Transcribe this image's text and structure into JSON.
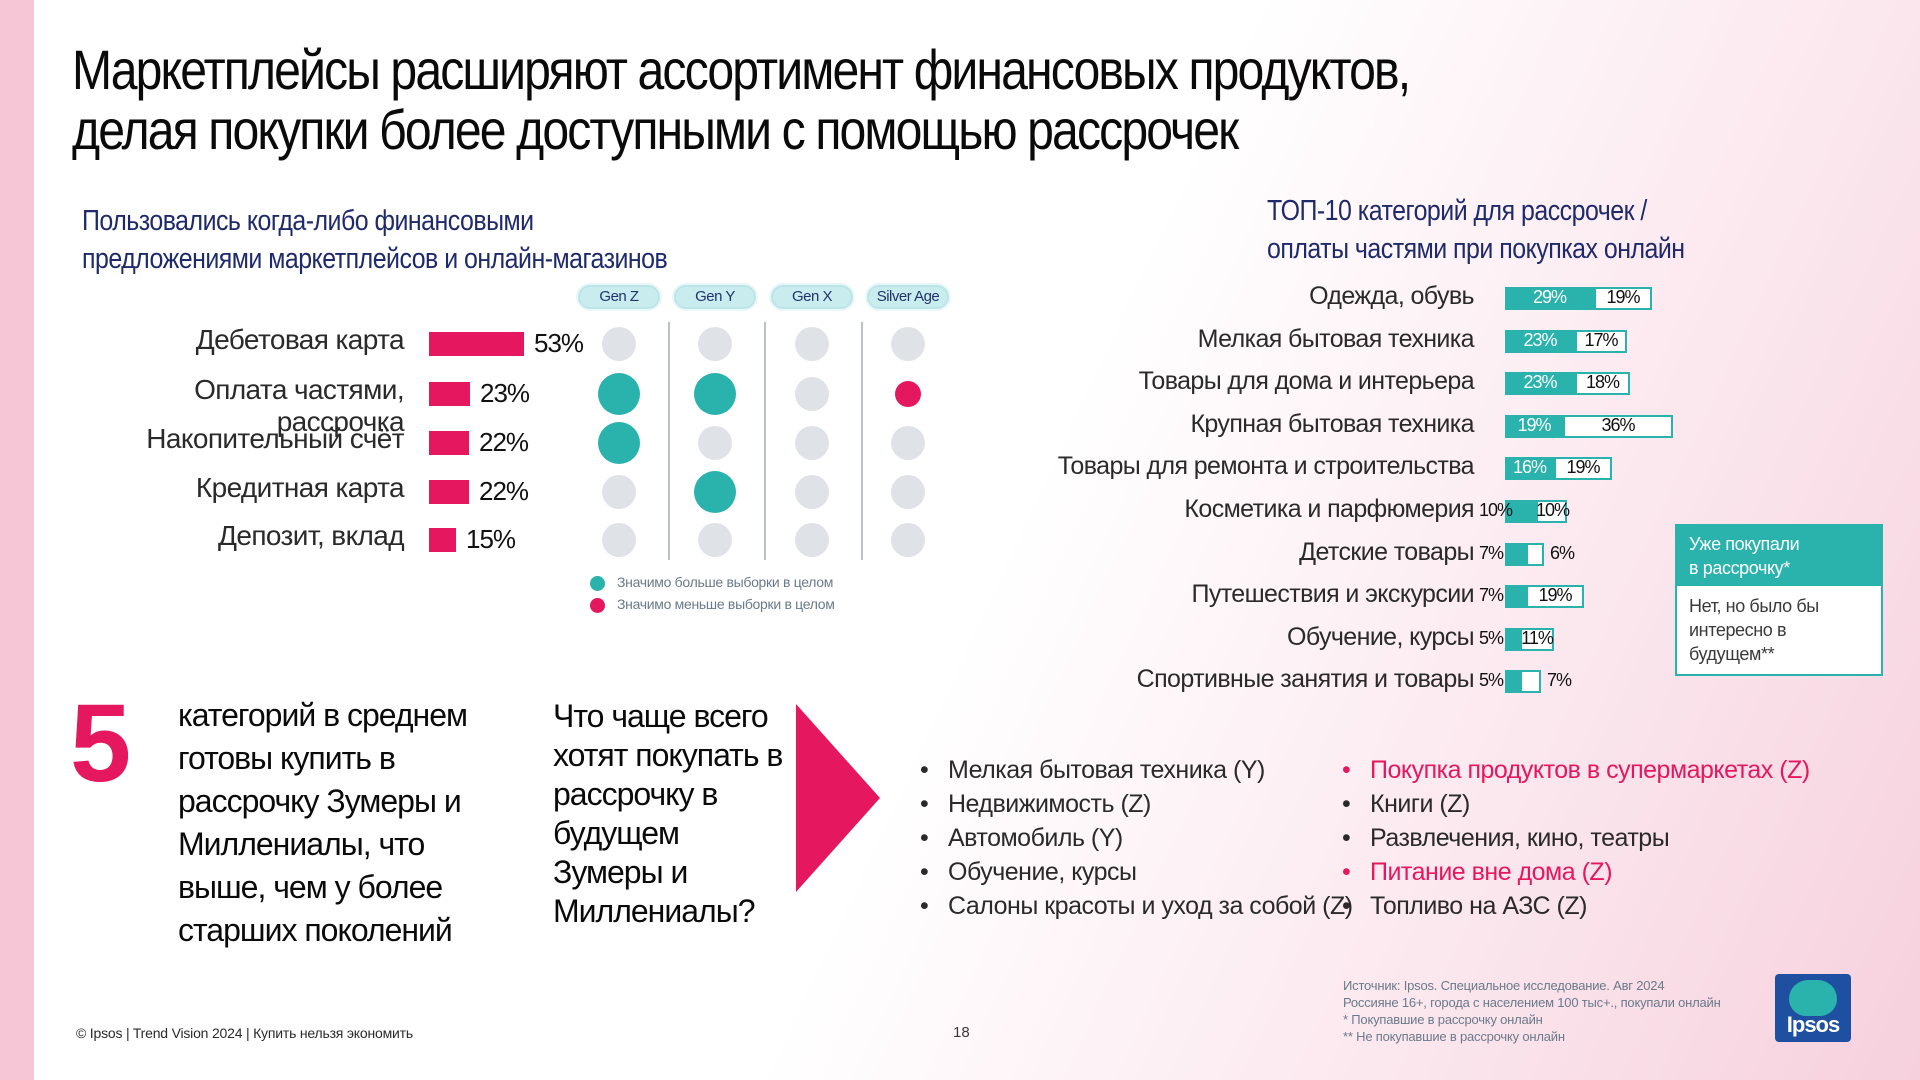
{
  "title_line1": "Маркетплейсы расширяют ассортимент финансовых продуктов,",
  "title_line2": "делая покупки более доступными с помощью рассрочек",
  "left_heading_line1": "Пользовались когда-либо финансовыми",
  "left_heading_line2": "предложениями маркетплейсов и онлайн-магазинов",
  "right_heading_line1": "ТОП-10 категорий для рассрочек /",
  "right_heading_line2": "оплаты частями при покупках онлайн",
  "colors": {
    "accent_pink": "#e5175f",
    "accent_teal": "#2ab3ad",
    "dot_grey": "#dfe2e6",
    "navy": "#1f2a6b"
  },
  "chart_data": [
    {
      "type": "bar",
      "orientation": "horizontal",
      "categories": [
        "Дебетовая карта",
        "Оплата частями, рассрочка",
        "Накопительный счёт",
        "Кредитная карта",
        "Депозит, вклад"
      ],
      "values": [
        53,
        23,
        22,
        22,
        15
      ],
      "value_labels": [
        "53%",
        "23%",
        "22%",
        "22%",
        "15%"
      ],
      "generations": [
        "Gen Z",
        "Gen Y",
        "Gen X",
        "Silver Age"
      ],
      "significance": [
        [
          "neutral",
          "neutral",
          "neutral",
          "neutral"
        ],
        [
          "higher",
          "higher",
          "neutral",
          "lower"
        ],
        [
          "higher",
          "neutral",
          "neutral",
          "neutral"
        ],
        [
          "neutral",
          "higher",
          "neutral",
          "neutral"
        ],
        [
          "neutral",
          "neutral",
          "neutral",
          "neutral"
        ]
      ],
      "legend": [
        {
          "label": "Значимо больше выборки в целом",
          "color": "#2ab3ad"
        },
        {
          "label": "Значимо меньше выборки в целом",
          "color": "#e5175f"
        }
      ]
    },
    {
      "type": "bar",
      "orientation": "horizontal",
      "stacked": true,
      "categories": [
        "Одежда, обувь",
        "Мелкая бытовая техника",
        "Товары для дома и интерьера",
        "Крупная бытовая техника",
        "Товары для ремонта и строительства",
        "Косметика и парфюмерия",
        "Детские товары",
        "Путешествия и экскурсии",
        "Обучение, курсы",
        "Спортивные занятия и товары"
      ],
      "series": [
        {
          "name": "Уже покупали в рассрочку*",
          "values": [
            29,
            23,
            23,
            19,
            16,
            10,
            7,
            7,
            5,
            5
          ],
          "labels": [
            "29%",
            "23%",
            "23%",
            "19%",
            "16%",
            "10%",
            "7%",
            "7%",
            "5%",
            "5%"
          ]
        },
        {
          "name": "Нет, но было бы интересно в будущем**",
          "values": [
            19,
            17,
            18,
            36,
            19,
            10,
            6,
            19,
            11,
            7
          ],
          "labels": [
            "19%",
            "17%",
            "18%",
            "36%",
            "19%",
            "10%",
            "6%",
            "19%",
            "11%",
            "7%"
          ]
        }
      ]
    }
  ],
  "legend_box": {
    "top_line1": "Уже покупали",
    "top_line2": "в рассрочку*",
    "bottom_line1": "Нет, но было бы",
    "bottom_line2": "интересно в",
    "bottom_line3": "будущем**"
  },
  "big_number": "5",
  "five_text": [
    "категорий в среднем",
    "готовы купить в",
    "рассрочку Зумеры и",
    "Миллениалы, что",
    "выше, чем у более",
    "старших поколений"
  ],
  "question": [
    "Что чаще всего",
    "хотят покупать в",
    "рассрочку в",
    "будущем",
    "Зумеры и",
    "Миллениалы?"
  ],
  "list_left": [
    "Мелкая бытовая техника (Y)",
    "Недвижимость (Z)",
    "Автомобиль (Y)",
    "Обучение, курсы",
    "Салоны красоты и уход за собой (Z)"
  ],
  "list_right": [
    "Покупка продуктов в супермаркетах (Z)",
    "Книги (Z)",
    "Развлечения, кино, театры",
    "Питание вне дома (Z)",
    "Топливо на АЗС (Z)"
  ],
  "footer_text": "© Ipsos | Trend Vision 2024 | Купить нельзя экономить",
  "page_number": "18",
  "source": [
    "Источник: Ipsos. Специальное исследование. Авг 2024",
    "Россияне 16+, города с населением 100 тыс+., покупали онлайн",
    "* Покупавшие в рассрочку онлайн",
    "** Не покупавшие в рассрочку онлайн"
  ],
  "logo_text": "Ipsos"
}
